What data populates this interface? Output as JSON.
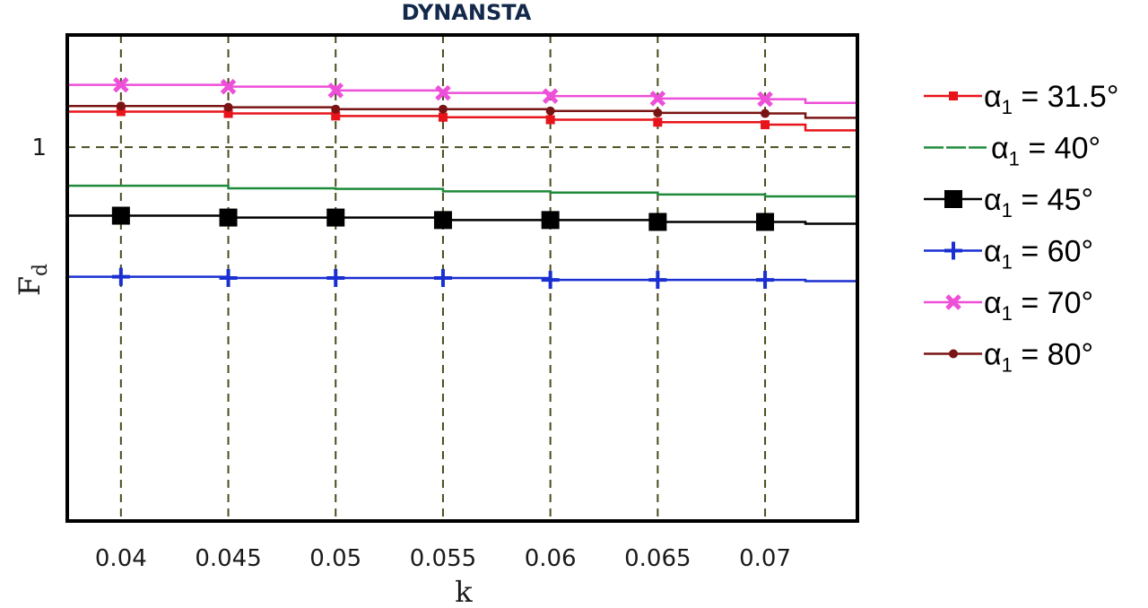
{
  "chart_data": {
    "type": "line",
    "title": "DYNANSTA",
    "xlabel": "k",
    "ylabel": "F",
    "ylabel_sub": "d",
    "xlim": [
      0.0375,
      0.0743
    ],
    "ylim": [
      0.4,
      1.18
    ],
    "x_ticks": [
      "0.04",
      "0.045",
      "0.05",
      "0.055",
      "0.06",
      "0.065",
      "0.07"
    ],
    "x_tick_values": [
      0.04,
      0.045,
      0.05,
      0.055,
      0.06,
      0.065,
      0.07
    ],
    "y_ticks": [
      "1"
    ],
    "y_tick_values": [
      1.0
    ],
    "grid": "dashed",
    "grid_color": "#4b4b1e",
    "legend_position": "right",
    "x": [
      0.04,
      0.045,
      0.05,
      0.055,
      0.06,
      0.065,
      0.07
    ],
    "series": [
      {
        "name": "α1 = 31.5°",
        "symbol": "α",
        "sub": "1",
        "value_text": " = 31.5°",
        "color": "#e8141b",
        "marker": "square-small",
        "values": [
          1.057,
          1.054,
          1.05,
          1.048,
          1.044,
          1.04,
          1.036
        ],
        "line_end": 1.027
      },
      {
        "name": "α1 = 40°",
        "symbol": "α",
        "sub": "1",
        "value_text": " = 40°",
        "color": "#1f8a3a",
        "marker": "none",
        "values": [
          0.938,
          0.934,
          0.933,
          0.929,
          0.927,
          0.924,
          0.921
        ],
        "line_end": 0.921
      },
      {
        "name": "α1 = 45°",
        "symbol": "α",
        "sub": "1",
        "value_text": " = 45°",
        "color": "#000000",
        "marker": "square-large",
        "values": [
          0.89,
          0.887,
          0.887,
          0.883,
          0.883,
          0.88,
          0.88
        ],
        "line_end": 0.877
      },
      {
        "name": "α1 = 60°",
        "symbol": "α",
        "sub": "1",
        "value_text": " = 60°",
        "color": "#1a2fd1",
        "marker": "plus",
        "values": [
          0.792,
          0.79,
          0.79,
          0.79,
          0.787,
          0.787,
          0.787
        ],
        "line_end": 0.785
      },
      {
        "name": "α1 = 70°",
        "symbol": "α",
        "sub": "1",
        "value_text": " = 70°",
        "color": "#ee4fd8",
        "marker": "x",
        "values": [
          1.1,
          1.097,
          1.091,
          1.087,
          1.082,
          1.078,
          1.077
        ],
        "line_end": 1.071
      },
      {
        "name": "α1 = 80°",
        "symbol": "α",
        "sub": "1",
        "value_text": " = 80°",
        "color": "#7a1414",
        "marker": "dot",
        "values": [
          1.066,
          1.064,
          1.061,
          1.061,
          1.058,
          1.055,
          1.054
        ],
        "line_end": 1.047
      }
    ]
  }
}
